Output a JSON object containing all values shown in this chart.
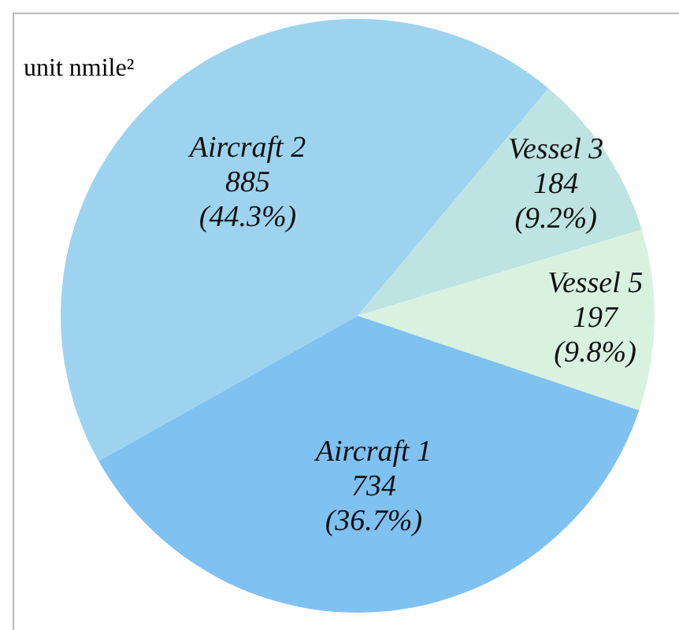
{
  "chart_data": {
    "type": "pie",
    "title": "unit nmile²",
    "categories": [
      "Aircraft 2",
      "Vessel 3",
      "Vessel 5",
      "Aircraft 1"
    ],
    "values": [
      885,
      184,
      197,
      734
    ],
    "colors": [
      "#9dd3ef",
      "#bde3e2",
      "#d9f2e0",
      "#7fc1f1"
    ],
    "value_labels": [
      "885\n(44.3%)",
      "184\n(9.2%)",
      "197\n(9.8%)",
      "734\n(36.7%)"
    ],
    "legend": false
  }
}
